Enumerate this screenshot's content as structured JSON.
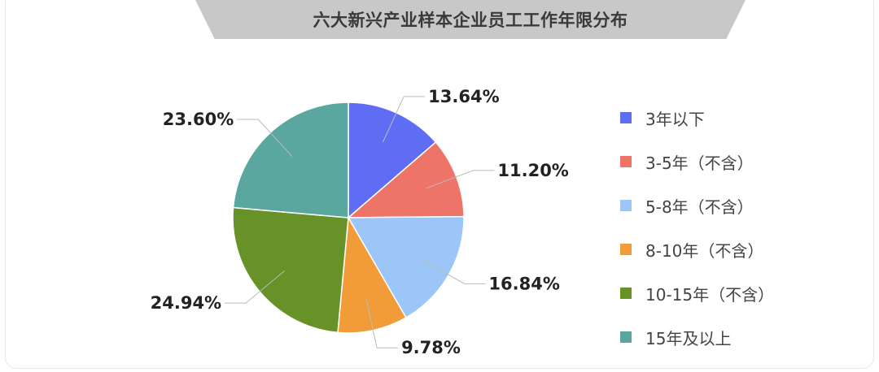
{
  "chart_data": {
    "type": "pie",
    "title": "六大新兴产业样本企业员工工作年限分布",
    "legend_position": "right",
    "slices": [
      {
        "label": "3年以下",
        "value": 13.64,
        "display": "13.64%",
        "color": "#5f6df5"
      },
      {
        "label": "3-5年（不含）",
        "value": 11.2,
        "display": "11.20%",
        "color": "#ee7468"
      },
      {
        "label": "5-8年（不含）",
        "value": 16.84,
        "display": "16.84%",
        "color": "#9cc6f8"
      },
      {
        "label": "8-10年（不含）",
        "value": 9.78,
        "display": "9.78%",
        "color": "#f19c38"
      },
      {
        "label": "10-15年（不含）",
        "value": 24.94,
        "display": "24.94%",
        "color": "#679227"
      },
      {
        "label": "15年及以上",
        "value": 23.6,
        "display": "23.60%",
        "color": "#5aa7a0"
      }
    ]
  }
}
